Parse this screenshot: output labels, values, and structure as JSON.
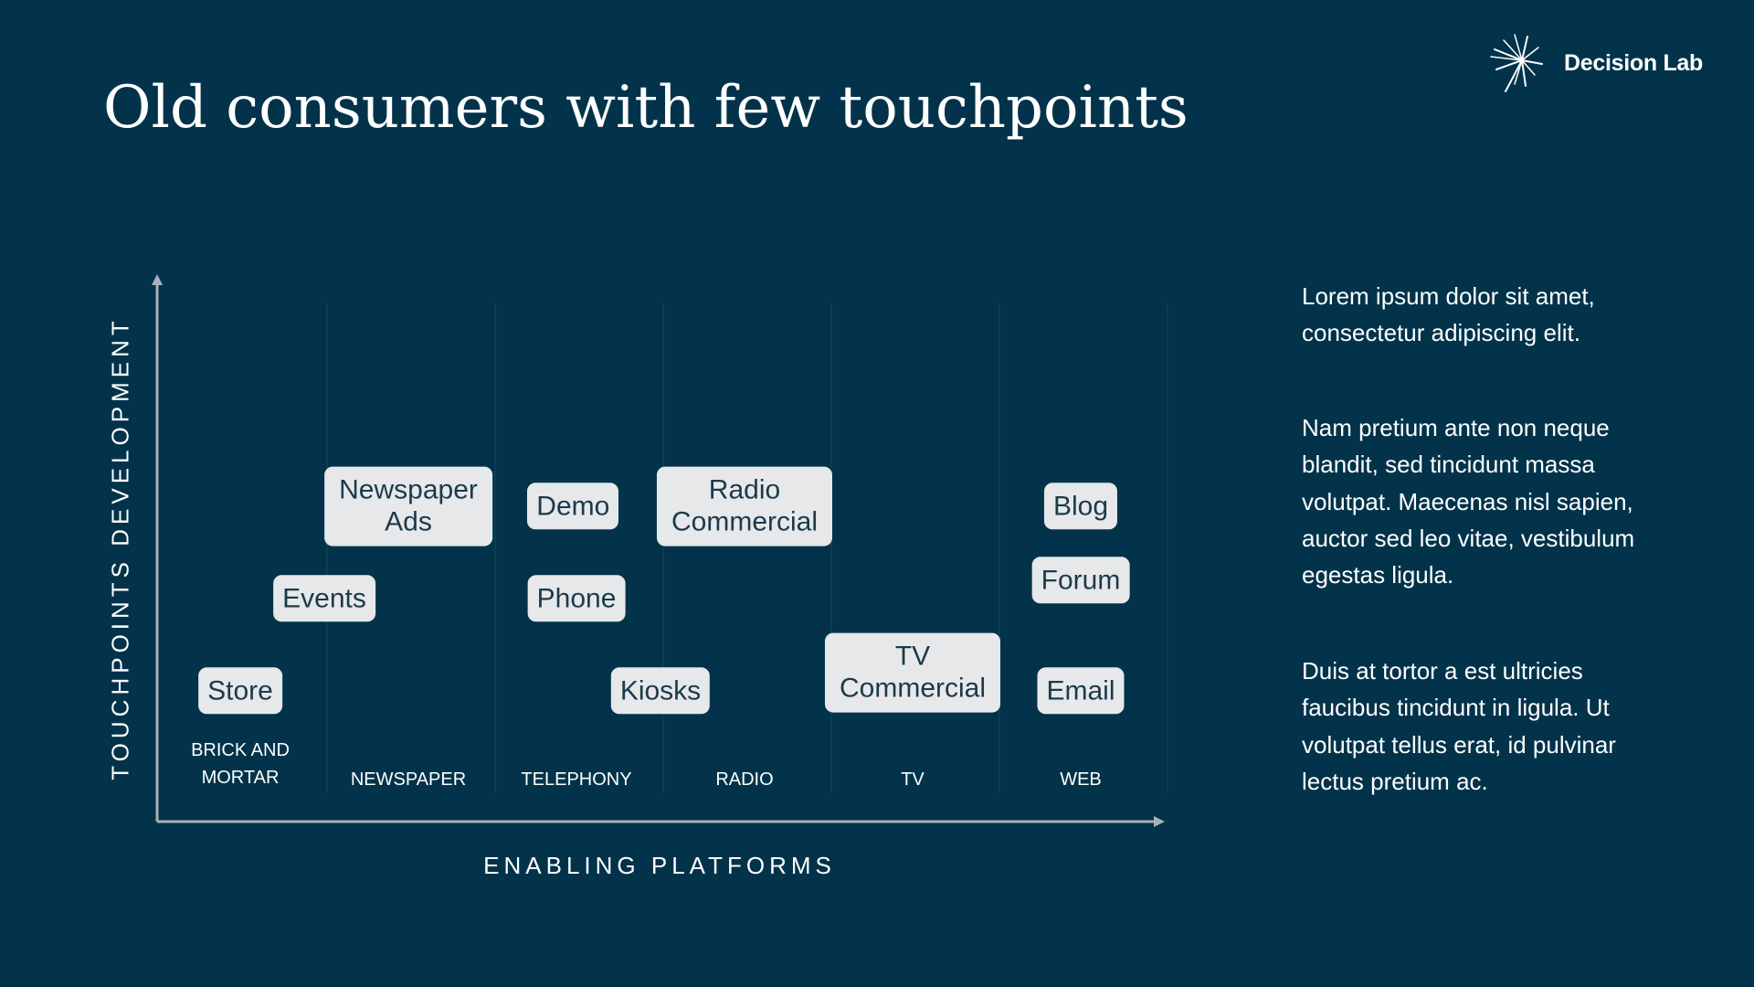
{
  "title": "Old consumers with few touchpoints",
  "logo": {
    "name": "Decision Lab",
    "icon": "starburst-icon"
  },
  "chart_data": {
    "type": "diagram",
    "xlabel": "ENABLING PLATFORMS",
    "ylabel": "TOUCHPOINTS DEVELOPMENT",
    "platforms": [
      "BRICK AND\nMORTAR",
      "NEWSPAPER",
      "TELEPHONY",
      "RADIO",
      "TV",
      "WEB"
    ],
    "touchpoints": [
      {
        "label": "Store",
        "platform": 0,
        "offset": 0,
        "level": 1
      },
      {
        "label": "Events",
        "platform": 0.5,
        "offset": 0,
        "level": 2
      },
      {
        "label": "Newspaper\nAds",
        "platform": 1,
        "offset": 0,
        "level": 3
      },
      {
        "label": "Demo",
        "platform": 2,
        "offset": -0.02,
        "level": 3
      },
      {
        "label": "Phone",
        "platform": 2,
        "offset": 0,
        "level": 2
      },
      {
        "label": "Kiosks",
        "platform": 2.5,
        "offset": 0,
        "level": 1
      },
      {
        "label": "Radio\nCommercial",
        "platform": 3,
        "offset": 0,
        "level": 3
      },
      {
        "label": "TV\nCommercial",
        "platform": 4,
        "offset": 0,
        "level": 1.2
      },
      {
        "label": "Blog",
        "platform": 5,
        "offset": 0,
        "level": 3
      },
      {
        "label": "Forum",
        "platform": 5,
        "offset": 0,
        "level": 2.2
      },
      {
        "label": "Email",
        "platform": 5,
        "offset": 0,
        "level": 1
      }
    ]
  },
  "sidebar": {
    "paragraphs": [
      "Lorem ipsum dolor sit amet, consectetur adipiscing elit.",
      "Nam pretium ante non neque blandit, sed tincidunt massa volutpat. Maecenas nisl sapien, auctor sed leo vitae, vestibulum egestas ligula.",
      "Duis at tortor a est ultricies faucibus tincidunt in ligula. Ut volutpat tellus erat, id pulvinar lectus pretium ac."
    ]
  },
  "colors": {
    "background": "#02334a",
    "box_fill": "#e6e8ea",
    "box_text": "#1c3a4a",
    "axis": "#a8b2b8",
    "gridline": "#0e4257"
  }
}
